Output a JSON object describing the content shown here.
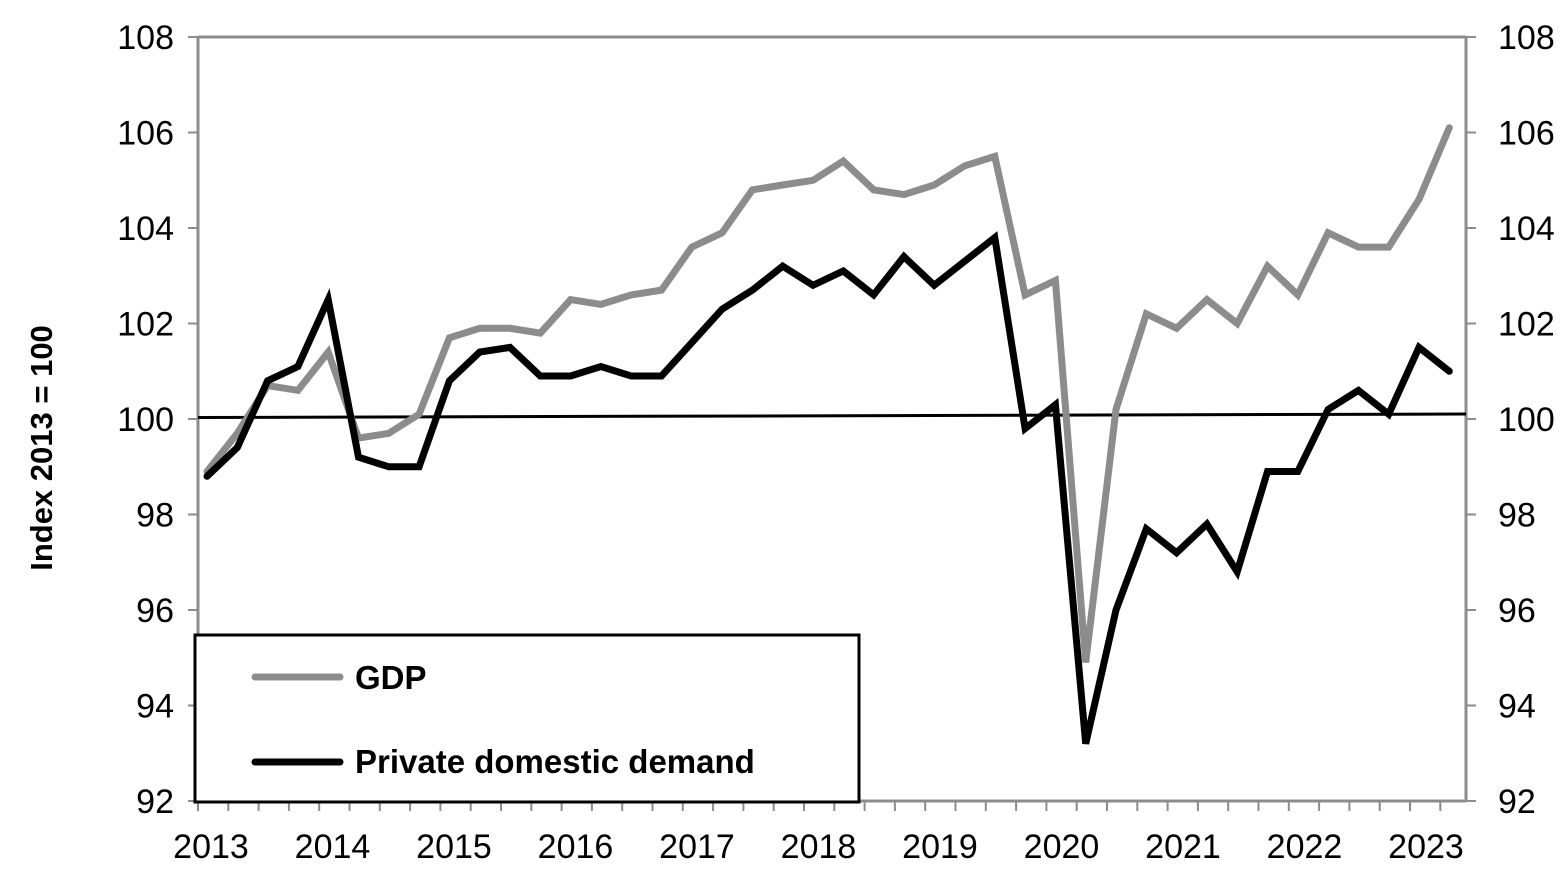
{
  "chart_data": {
    "type": "line",
    "title": "",
    "xlabel": "",
    "ylabel": "Index 2013 = 100",
    "ylim": [
      92,
      108
    ],
    "y_ticks": [
      "92",
      "94",
      "96",
      "98",
      "100",
      "102",
      "104",
      "106",
      "108"
    ],
    "y_ticks_right": [
      "92",
      "94",
      "96",
      "98",
      "100",
      "102",
      "104",
      "106",
      "108"
    ],
    "x_ticks": [
      "2013",
      "2014",
      "2015",
      "2016",
      "2017",
      "2018",
      "2019",
      "2020",
      "2021",
      "2022",
      "2023"
    ],
    "x_period": "quarterly",
    "x_start": "2013 Q1",
    "grid": false,
    "legend_position": "bottom-left",
    "reference_line": {
      "value": 100,
      "color": "#000000"
    },
    "series": [
      {
        "name": "GDP",
        "color": "#8c8c8c",
        "values": [
          98.9,
          99.7,
          100.7,
          100.6,
          101.4,
          99.6,
          99.7,
          100.1,
          101.7,
          101.9,
          101.9,
          101.8,
          102.5,
          102.4,
          102.6,
          102.7,
          103.6,
          103.9,
          104.8,
          104.9,
          105.0,
          105.4,
          104.8,
          104.7,
          104.9,
          105.3,
          105.5,
          102.6,
          102.9,
          94.9,
          100.2,
          102.2,
          101.9,
          102.5,
          102.0,
          103.2,
          102.6,
          103.9,
          103.6,
          103.6,
          104.6,
          106.1
        ]
      },
      {
        "name": "Private domestic demand",
        "color": "#000000",
        "values": [
          98.8,
          99.4,
          100.8,
          101.1,
          102.5,
          99.2,
          99.0,
          99.0,
          100.8,
          101.4,
          101.5,
          100.9,
          100.9,
          101.1,
          100.9,
          100.9,
          101.6,
          102.3,
          102.7,
          103.2,
          102.8,
          103.1,
          102.6,
          103.4,
          102.8,
          103.3,
          103.8,
          99.8,
          100.3,
          93.2,
          96.0,
          97.7,
          97.2,
          97.8,
          96.8,
          98.9,
          98.9,
          100.2,
          100.6,
          100.1,
          101.5,
          101.0
        ]
      }
    ]
  }
}
